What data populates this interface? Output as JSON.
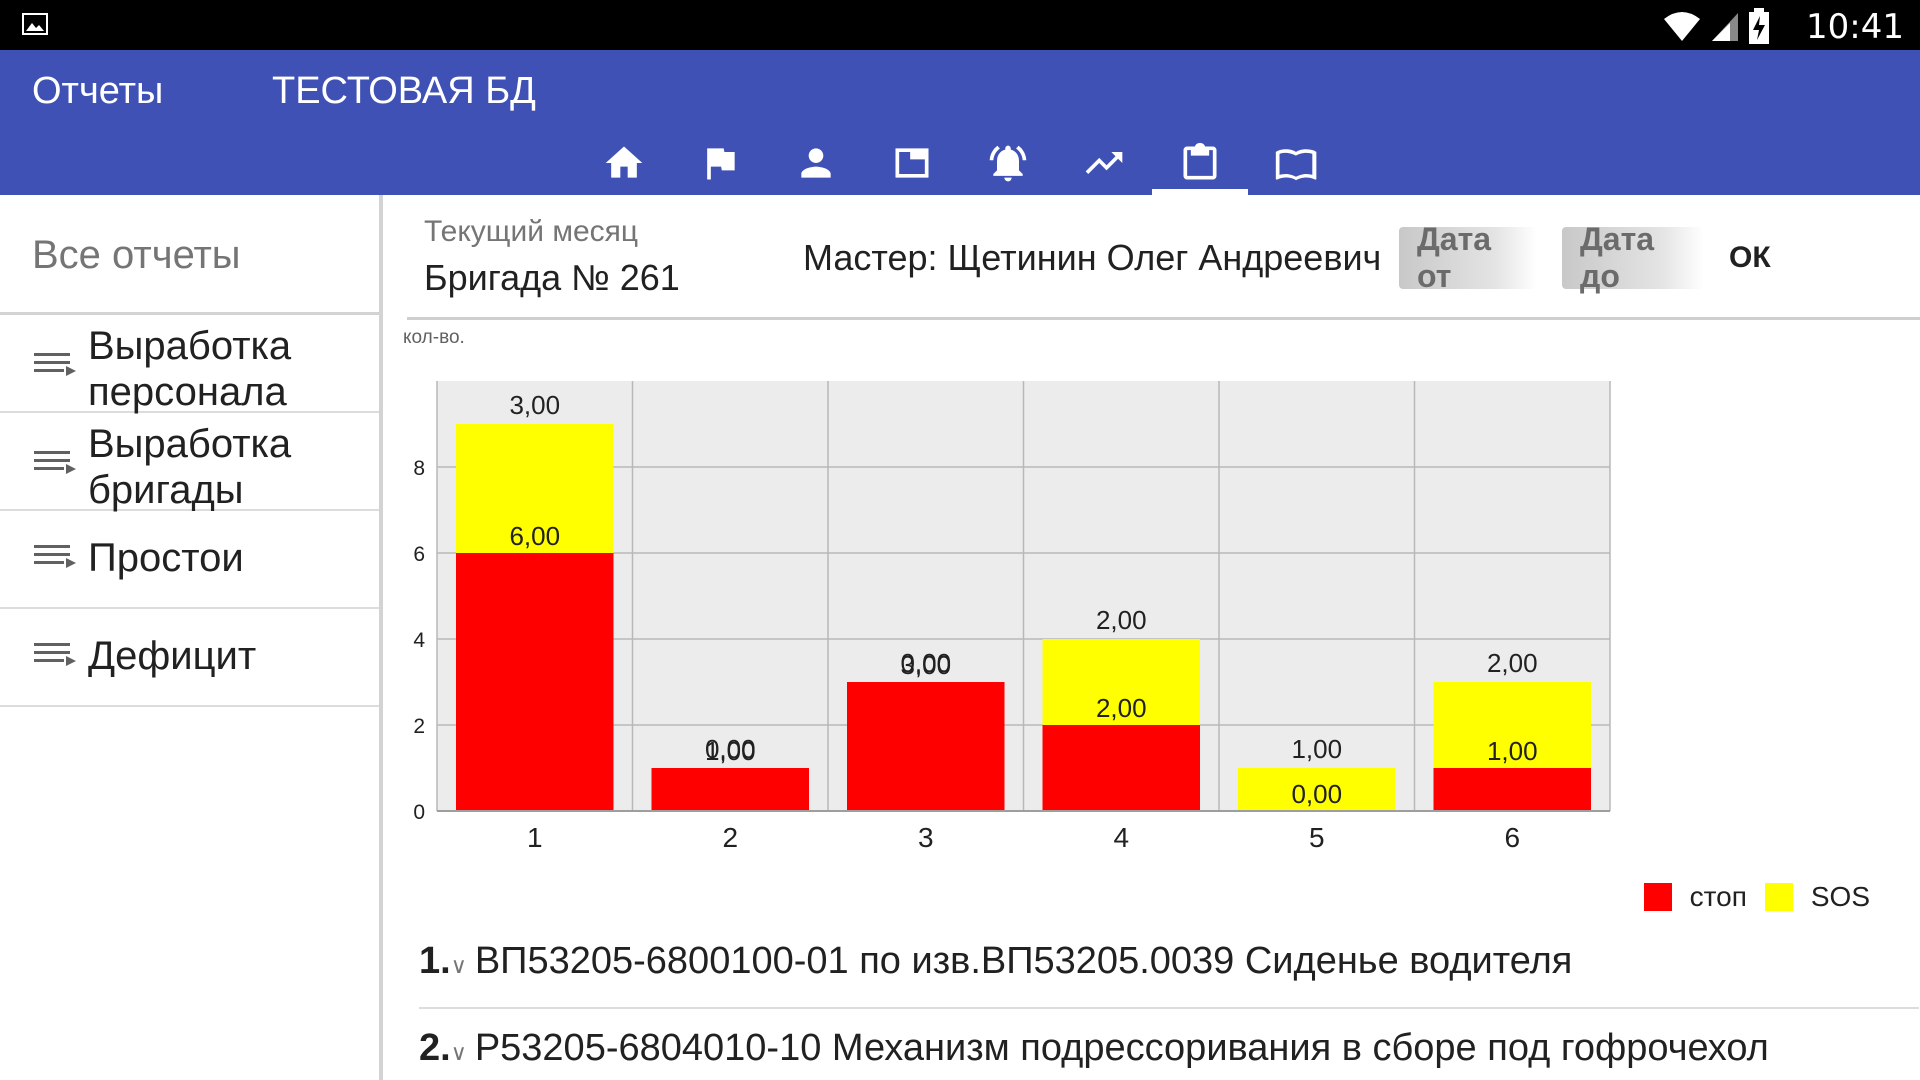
{
  "status_bar": {
    "time": "10:41"
  },
  "app_bar": {
    "section_title": "Отчеты",
    "db_name": "ТЕСТОВАЯ БД"
  },
  "tabs": [
    {
      "icon": "home-icon"
    },
    {
      "icon": "flag-icon"
    },
    {
      "icon": "person-icon"
    },
    {
      "icon": "window-icon"
    },
    {
      "icon": "alarm-icon"
    },
    {
      "icon": "trending-up-icon"
    },
    {
      "icon": "clipboard-icon",
      "active": true
    },
    {
      "icon": "book-icon"
    }
  ],
  "sidebar": {
    "all_reports": "Все отчеты",
    "items": [
      {
        "label": "Выработка персонала"
      },
      {
        "label": "Выработка бригады"
      },
      {
        "label": "Простои"
      },
      {
        "label": "Дефицит"
      }
    ]
  },
  "header": {
    "period": "Текущий месяц",
    "brigade": "Бригада № 261",
    "master": "Мастер: Щетинин Олег Андреевич",
    "date_from": "Дата от",
    "date_to": "Дата до",
    "ok": "ОК"
  },
  "chart_data": {
    "type": "bar",
    "stacked": true,
    "ylabel": "кол-во.",
    "ylim": [
      0,
      10
    ],
    "yticks": [
      0,
      2,
      4,
      6,
      8
    ],
    "categories": [
      "1",
      "2",
      "3",
      "4",
      "5",
      "6"
    ],
    "series": [
      {
        "name": "стоп",
        "color": "#ff0000",
        "values": [
          6,
          1,
          3,
          2,
          0,
          1
        ],
        "labels": [
          "6,00",
          "1,00",
          "3,00",
          "2,00",
          "0,00",
          "1,00"
        ]
      },
      {
        "name": "SOS",
        "color": "#ffff00",
        "values": [
          3,
          0,
          0,
          2,
          1,
          2
        ],
        "labels": [
          "3,00",
          "0,00",
          "0,00",
          "2,00",
          "1,00",
          "2,00"
        ]
      }
    ],
    "grid": true,
    "legend_position": "bottom-right",
    "plot_background": "#ececec"
  },
  "list": [
    {
      "num": "1.",
      "text": "ВП53205-6800100-01 по изв.ВП53205.0039  Сиденье водителя"
    },
    {
      "num": "2.",
      "text": "Р53205-6804010-10  Механизм подрессоривания в сборе под гофрочехол"
    }
  ]
}
